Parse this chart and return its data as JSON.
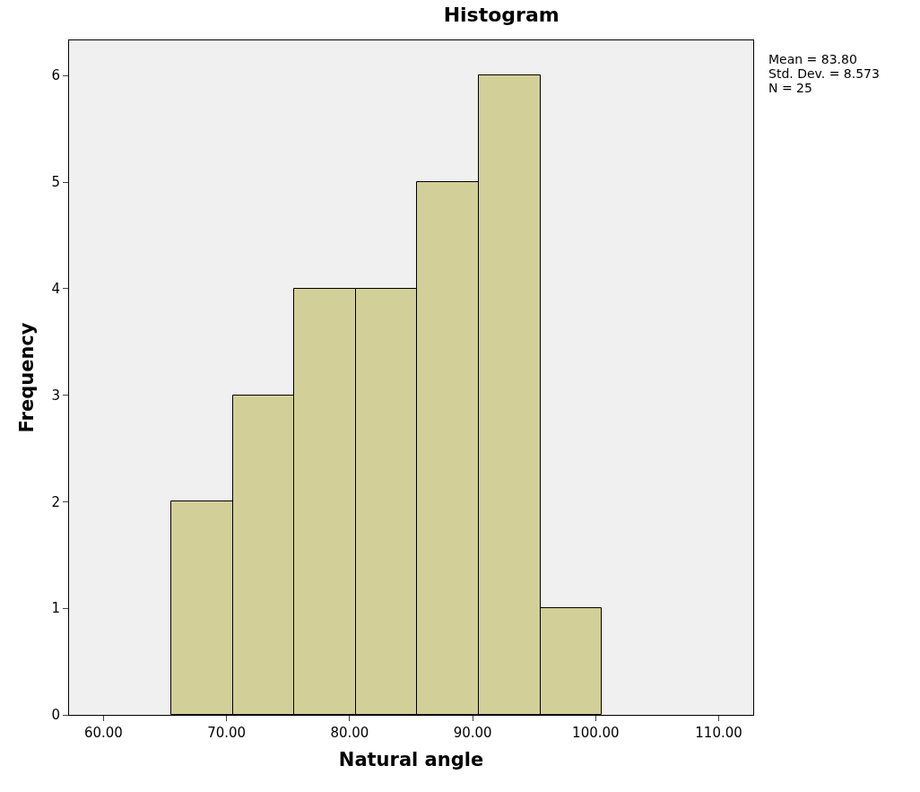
{
  "chart_data": {
    "type": "histogram",
    "title": "Histogram",
    "xlabel": "Natural angle",
    "ylabel": "Frequency",
    "bins": [
      65.5,
      70.5,
      75.5,
      80.5,
      85.5,
      90.5,
      95.5,
      100.5
    ],
    "values": [
      2,
      3,
      4,
      4,
      5,
      6,
      1
    ],
    "color": "#d3cf98",
    "xlim": [
      57.2,
      112.8
    ],
    "xticks": [
      {
        "value": 60,
        "label": "60.00"
      },
      {
        "value": 70,
        "label": "70.00"
      },
      {
        "value": 80,
        "label": "80.00"
      },
      {
        "value": 90,
        "label": "90.00"
      },
      {
        "value": 100,
        "label": "100.00"
      },
      {
        "value": 110,
        "label": "110.00"
      }
    ],
    "ylim": [
      0,
      6.33
    ],
    "yticks": [
      0,
      1,
      2,
      3,
      4,
      5,
      6
    ],
    "annotations": [
      "Mean = 83.80",
      "Std. Dev. = 8.573",
      "N = 25"
    ]
  }
}
